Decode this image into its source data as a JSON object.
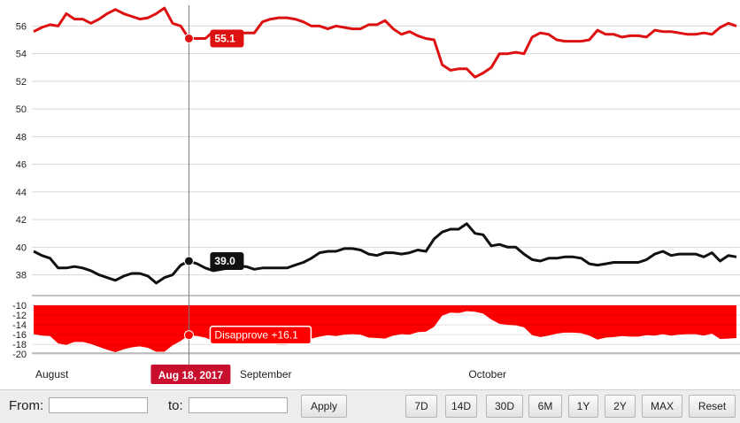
{
  "chart_data": {
    "type": "line",
    "main_panel": {
      "ylim": [
        36.5,
        57.5
      ],
      "yticks": [
        38,
        40,
        42,
        44,
        46,
        48,
        50,
        52,
        54,
        56
      ],
      "series": [
        {
          "color": "#dd1111",
          "values": [
            55.6,
            55.9,
            56.1,
            56.0,
            56.9,
            56.5,
            56.5,
            56.2,
            56.5,
            56.9,
            57.2,
            56.9,
            56.7,
            56.5,
            56.6,
            56.9,
            57.3,
            56.2,
            56.0,
            55.1,
            55.1,
            55.1,
            55.6,
            55.5,
            55.5,
            55.5,
            55.5,
            55.5,
            56.3,
            56.5,
            56.6,
            56.6,
            56.5,
            56.3,
            56.0,
            56.0,
            55.8,
            56.0,
            55.9,
            55.8,
            55.8,
            56.1,
            56.1,
            56.4,
            55.8,
            55.4,
            55.6,
            55.3,
            55.1,
            55.0,
            53.2,
            52.8,
            52.9,
            52.9,
            52.3,
            52.6,
            53.0,
            54.0,
            54.0,
            54.1,
            54.0,
            55.2,
            55.5,
            55.4,
            55.0,
            54.9,
            54.9,
            54.9,
            55.0,
            55.7,
            55.4,
            55.4,
            55.2,
            55.3,
            55.3,
            55.2,
            55.7,
            55.6,
            55.6,
            55.5,
            55.4,
            55.4,
            55.5,
            55.4,
            55.9,
            56.2,
            56.0
          ]
        },
        {
          "color": "#111111",
          "values": [
            39.7,
            39.4,
            39.2,
            38.5,
            38.5,
            38.6,
            38.5,
            38.3,
            38.0,
            37.8,
            37.6,
            37.9,
            38.1,
            38.1,
            37.9,
            37.4,
            37.8,
            38.0,
            38.7,
            39.0,
            38.8,
            38.5,
            38.3,
            38.4,
            38.5,
            38.6,
            38.6,
            38.4,
            38.5,
            38.5,
            38.5,
            38.5,
            38.7,
            38.9,
            39.2,
            39.6,
            39.7,
            39.7,
            39.9,
            39.9,
            39.8,
            39.5,
            39.4,
            39.6,
            39.6,
            39.5,
            39.6,
            39.8,
            39.7,
            40.6,
            41.1,
            41.3,
            41.3,
            41.7,
            41.0,
            40.9,
            40.1,
            40.2,
            40.0,
            40.0,
            39.5,
            39.1,
            39.0,
            39.2,
            39.2,
            39.3,
            39.3,
            39.2,
            38.8,
            38.7,
            38.8,
            38.9,
            38.9,
            38.9,
            38.9,
            39.1,
            39.5,
            39.7,
            39.4,
            39.5,
            39.5,
            39.5,
            39.3,
            39.6,
            39.0,
            39.4,
            39.3
          ]
        }
      ],
      "crosshair_index": 19,
      "labels": [
        {
          "series": 0,
          "text": "55.1"
        },
        {
          "series": 1,
          "text": "39.0"
        }
      ]
    },
    "spread_panel": {
      "ylim": [
        -20.5,
        -10
      ],
      "yticks": [
        -10,
        -12,
        -14,
        -16,
        -18,
        -20
      ],
      "color": "#ff0000",
      "values": [
        -15.9,
        -16.2,
        -16.3,
        -17.8,
        -18.1,
        -17.5,
        -17.5,
        -17.9,
        -18.5,
        -19.1,
        -19.6,
        -19.0,
        -18.6,
        -18.4,
        -18.7,
        -19.5,
        -19.5,
        -18.2,
        -17.3,
        -16.1,
        -16.3,
        -16.6,
        -17.3,
        -17.1,
        -17.0,
        -16.9,
        -16.9,
        -17.1,
        -17.8,
        -18.0,
        -18.1,
        -18.1,
        -17.8,
        -17.4,
        -16.8,
        -16.4,
        -16.1,
        -16.3,
        -16.0,
        -15.9,
        -16.0,
        -16.6,
        -16.7,
        -16.8,
        -16.2,
        -15.9,
        -16.0,
        -15.5,
        -15.4,
        -14.4,
        -12.1,
        -11.5,
        -11.6,
        -11.2,
        -11.3,
        -11.7,
        -12.9,
        -13.8,
        -14.0,
        -14.1,
        -14.5,
        -16.1,
        -16.5,
        -16.2,
        -15.8,
        -15.6,
        -15.6,
        -15.7,
        -16.2,
        -17.0,
        -16.6,
        -16.5,
        -16.3,
        -16.4,
        -16.4,
        -16.1,
        -16.2,
        -15.9,
        -16.2,
        -16.0,
        -15.9,
        -15.9,
        -16.2,
        -15.8,
        -16.9,
        -16.8,
        -16.7
      ],
      "label": "Disapprove +16.1"
    },
    "x_month_labels": [
      {
        "text": "August",
        "index": 0
      },
      {
        "text": "September",
        "index": 25
      },
      {
        "text": "October",
        "index": 53
      }
    ],
    "crosshair_date": "Aug 18, 2017"
  },
  "controls": {
    "from_label": "From:",
    "to_label": "to:",
    "from_value": "",
    "to_value": "",
    "apply": "Apply",
    "ranges": [
      "7D",
      "14D",
      "30D",
      "6M",
      "1Y",
      "2Y",
      "MAX",
      "Reset"
    ]
  }
}
